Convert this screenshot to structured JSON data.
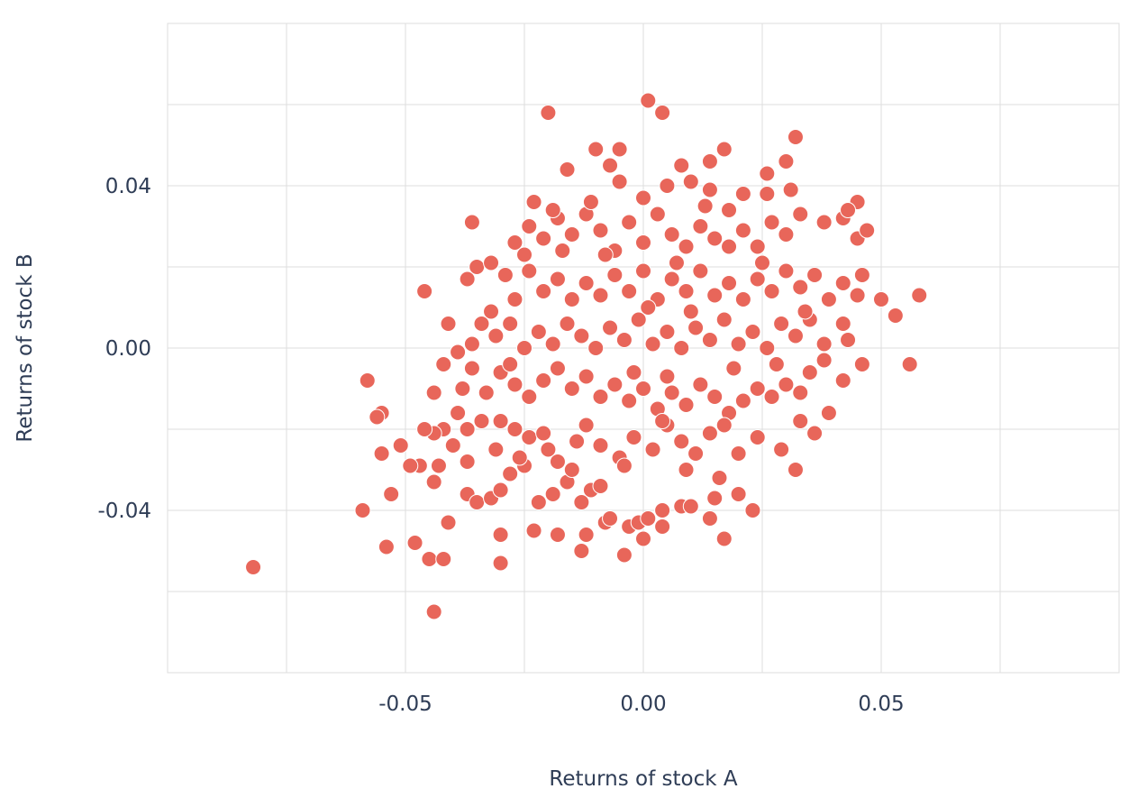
{
  "chart_data": {
    "type": "scatter",
    "xlabel": "Returns of stock A",
    "ylabel": "Returns of stock B",
    "xlim": [
      -0.1,
      0.1
    ],
    "ylim": [
      -0.08,
      0.08
    ],
    "x_ticks": [
      -0.05,
      0.0,
      0.05
    ],
    "x_tick_labels": [
      "-0.05",
      "0.00",
      "0.05"
    ],
    "y_ticks": [
      -0.04,
      0.0,
      0.04
    ],
    "y_tick_labels": [
      "-0.04",
      "0.00",
      "0.04"
    ],
    "x_gridlines": [
      -0.075,
      -0.05,
      -0.025,
      0.0,
      0.025,
      0.05,
      0.075
    ],
    "y_gridlines": [
      -0.06,
      -0.04,
      -0.02,
      0.0,
      0.02,
      0.04,
      0.06
    ],
    "grid": true,
    "colors": {
      "point": "#e8665a",
      "point_stroke": "#ffffff",
      "grid": "#dddddd",
      "text": "#2f3d56"
    },
    "points": [
      [
        -0.082,
        -0.054
      ],
      [
        -0.044,
        -0.065
      ],
      [
        -0.059,
        -0.04
      ],
      [
        -0.054,
        -0.049
      ],
      [
        -0.048,
        -0.048
      ],
      [
        -0.045,
        -0.052
      ],
      [
        -0.042,
        -0.052
      ],
      [
        -0.03,
        -0.053
      ],
      [
        -0.03,
        -0.046
      ],
      [
        -0.023,
        -0.045
      ],
      [
        -0.018,
        -0.046
      ],
      [
        -0.012,
        -0.046
      ],
      [
        -0.013,
        -0.05
      ],
      [
        -0.008,
        -0.043
      ],
      [
        -0.004,
        -0.051
      ],
      [
        -0.003,
        -0.044
      ],
      [
        0.0,
        -0.047
      ],
      [
        -0.001,
        -0.043
      ],
      [
        0.001,
        -0.042
      ],
      [
        0.004,
        -0.044
      ],
      [
        0.004,
        -0.04
      ],
      [
        0.008,
        -0.039
      ],
      [
        0.01,
        -0.039
      ],
      [
        0.014,
        -0.042
      ],
      [
        0.017,
        -0.047
      ],
      [
        0.023,
        -0.04
      ],
      [
        0.02,
        -0.036
      ],
      [
        0.015,
        -0.037
      ],
      [
        -0.051,
        -0.024
      ],
      [
        -0.053,
        -0.036
      ],
      [
        -0.041,
        -0.043
      ],
      [
        -0.044,
        -0.033
      ],
      [
        -0.047,
        -0.029
      ],
      [
        -0.04,
        -0.024
      ],
      [
        -0.037,
        -0.036
      ],
      [
        -0.035,
        -0.038
      ],
      [
        -0.032,
        -0.037
      ],
      [
        -0.03,
        -0.035
      ],
      [
        -0.028,
        -0.031
      ],
      [
        -0.025,
        -0.029
      ],
      [
        -0.022,
        -0.038
      ],
      [
        -0.019,
        -0.036
      ],
      [
        -0.016,
        -0.033
      ],
      [
        -0.013,
        -0.038
      ],
      [
        -0.011,
        -0.035
      ],
      [
        -0.009,
        -0.034
      ],
      [
        -0.015,
        -0.03
      ],
      [
        -0.018,
        -0.028
      ],
      [
        -0.02,
        -0.025
      ],
      [
        -0.024,
        -0.022
      ],
      [
        -0.027,
        -0.02
      ],
      [
        -0.03,
        -0.018
      ],
      [
        -0.034,
        -0.018
      ],
      [
        -0.037,
        -0.02
      ],
      [
        -0.039,
        -0.016
      ],
      [
        -0.042,
        -0.02
      ],
      [
        -0.044,
        -0.021
      ],
      [
        -0.055,
        -0.026
      ],
      [
        -0.055,
        -0.016
      ],
      [
        -0.056,
        -0.017
      ],
      [
        -0.058,
        -0.008
      ],
      [
        -0.044,
        -0.011
      ],
      [
        -0.042,
        -0.004
      ],
      [
        -0.038,
        -0.01
      ],
      [
        -0.036,
        -0.005
      ],
      [
        -0.033,
        -0.011
      ],
      [
        -0.03,
        -0.006
      ],
      [
        -0.027,
        -0.009
      ],
      [
        -0.024,
        -0.012
      ],
      [
        -0.021,
        -0.008
      ],
      [
        -0.018,
        -0.005
      ],
      [
        -0.015,
        -0.01
      ],
      [
        -0.012,
        -0.007
      ],
      [
        -0.009,
        -0.012
      ],
      [
        -0.006,
        -0.009
      ],
      [
        -0.003,
        -0.013
      ],
      [
        0.0,
        -0.01
      ],
      [
        0.003,
        -0.015
      ],
      [
        0.006,
        -0.011
      ],
      [
        0.009,
        -0.014
      ],
      [
        0.012,
        -0.009
      ],
      [
        0.015,
        -0.012
      ],
      [
        0.018,
        -0.016
      ],
      [
        0.021,
        -0.013
      ],
      [
        0.024,
        -0.01
      ],
      [
        0.027,
        -0.012
      ],
      [
        0.03,
        -0.009
      ],
      [
        0.033,
        -0.011
      ],
      [
        0.035,
        -0.006
      ],
      [
        0.038,
        -0.003
      ],
      [
        0.042,
        -0.008
      ],
      [
        0.046,
        -0.004
      ],
      [
        0.056,
        -0.004
      ],
      [
        -0.041,
        0.006
      ],
      [
        -0.039,
        -0.001
      ],
      [
        -0.036,
        0.001
      ],
      [
        -0.034,
        0.006
      ],
      [
        -0.031,
        0.003
      ],
      [
        -0.028,
        0.006
      ],
      [
        -0.025,
        0.0
      ],
      [
        -0.022,
        0.004
      ],
      [
        -0.019,
        0.001
      ],
      [
        -0.016,
        0.006
      ],
      [
        -0.013,
        0.003
      ],
      [
        -0.01,
        0.0
      ],
      [
        -0.007,
        0.005
      ],
      [
        -0.004,
        0.002
      ],
      [
        -0.001,
        0.007
      ],
      [
        0.002,
        0.001
      ],
      [
        0.005,
        0.004
      ],
      [
        0.008,
        0.0
      ],
      [
        0.011,
        0.005
      ],
      [
        0.014,
        0.002
      ],
      [
        0.017,
        0.007
      ],
      [
        0.02,
        0.001
      ],
      [
        0.023,
        0.004
      ],
      [
        0.026,
        0.0
      ],
      [
        0.029,
        0.006
      ],
      [
        0.032,
        0.003
      ],
      [
        0.035,
        0.007
      ],
      [
        0.038,
        0.001
      ],
      [
        0.042,
        0.006
      ],
      [
        0.043,
        0.002
      ],
      [
        0.053,
        0.008
      ],
      [
        0.058,
        0.013
      ],
      [
        0.05,
        0.012
      ],
      [
        -0.046,
        0.014
      ],
      [
        -0.037,
        0.017
      ],
      [
        -0.035,
        0.02
      ],
      [
        -0.032,
        0.021
      ],
      [
        -0.029,
        0.018
      ],
      [
        -0.027,
        0.012
      ],
      [
        -0.024,
        0.019
      ],
      [
        -0.021,
        0.014
      ],
      [
        -0.018,
        0.017
      ],
      [
        -0.015,
        0.012
      ],
      [
        -0.012,
        0.016
      ],
      [
        -0.009,
        0.013
      ],
      [
        -0.006,
        0.018
      ],
      [
        -0.003,
        0.014
      ],
      [
        0.0,
        0.019
      ],
      [
        0.003,
        0.012
      ],
      [
        0.006,
        0.017
      ],
      [
        0.009,
        0.014
      ],
      [
        0.012,
        0.019
      ],
      [
        0.015,
        0.013
      ],
      [
        0.018,
        0.016
      ],
      [
        0.021,
        0.012
      ],
      [
        0.024,
        0.017
      ],
      [
        0.027,
        0.014
      ],
      [
        0.03,
        0.019
      ],
      [
        0.033,
        0.015
      ],
      [
        0.036,
        0.018
      ],
      [
        0.039,
        0.012
      ],
      [
        0.042,
        0.016
      ],
      [
        0.045,
        0.013
      ],
      [
        0.046,
        0.018
      ],
      [
        -0.036,
        0.031
      ],
      [
        -0.027,
        0.026
      ],
      [
        -0.024,
        0.03
      ],
      [
        -0.021,
        0.027
      ],
      [
        -0.018,
        0.032
      ],
      [
        -0.015,
        0.028
      ],
      [
        -0.012,
        0.033
      ],
      [
        -0.009,
        0.029
      ],
      [
        -0.006,
        0.024
      ],
      [
        -0.003,
        0.031
      ],
      [
        0.0,
        0.026
      ],
      [
        0.003,
        0.033
      ],
      [
        0.006,
        0.028
      ],
      [
        0.009,
        0.025
      ],
      [
        0.012,
        0.03
      ],
      [
        0.015,
        0.027
      ],
      [
        0.018,
        0.034
      ],
      [
        0.021,
        0.029
      ],
      [
        0.024,
        0.025
      ],
      [
        0.027,
        0.031
      ],
      [
        0.03,
        0.028
      ],
      [
        0.033,
        0.033
      ],
      [
        0.038,
        0.031
      ],
      [
        0.042,
        0.032
      ],
      [
        0.045,
        0.027
      ],
      [
        0.047,
        0.029
      ],
      [
        -0.023,
        0.036
      ],
      [
        -0.019,
        0.034
      ],
      [
        -0.011,
        0.036
      ],
      [
        -0.005,
        0.041
      ],
      [
        0.0,
        0.037
      ],
      [
        0.005,
        0.04
      ],
      [
        0.01,
        0.041
      ],
      [
        0.014,
        0.039
      ],
      [
        0.021,
        0.038
      ],
      [
        0.026,
        0.038
      ],
      [
        0.031,
        0.039
      ],
      [
        0.045,
        0.036
      ],
      [
        0.043,
        0.034
      ],
      [
        -0.016,
        0.044
      ],
      [
        -0.01,
        0.049
      ],
      [
        -0.007,
        0.045
      ],
      [
        -0.005,
        0.049
      ],
      [
        0.008,
        0.045
      ],
      [
        0.014,
        0.046
      ],
      [
        0.017,
        0.049
      ],
      [
        0.026,
        0.043
      ],
      [
        0.03,
        0.046
      ],
      [
        0.032,
        0.052
      ],
      [
        -0.02,
        0.058
      ],
      [
        0.001,
        0.061
      ],
      [
        0.004,
        0.058
      ],
      [
        -0.046,
        -0.02
      ],
      [
        -0.049,
        -0.029
      ],
      [
        -0.043,
        -0.029
      ],
      [
        -0.037,
        -0.028
      ],
      [
        -0.031,
        -0.025
      ],
      [
        -0.026,
        -0.027
      ],
      [
        -0.021,
        -0.021
      ],
      [
        -0.014,
        -0.023
      ],
      [
        -0.009,
        -0.024
      ],
      [
        -0.005,
        -0.027
      ],
      [
        -0.002,
        -0.022
      ],
      [
        0.002,
        -0.025
      ],
      [
        0.005,
        -0.019
      ],
      [
        0.008,
        -0.023
      ],
      [
        0.011,
        -0.026
      ],
      [
        0.014,
        -0.021
      ],
      [
        0.017,
        -0.019
      ],
      [
        0.02,
        -0.026
      ],
      [
        0.024,
        -0.022
      ],
      [
        0.029,
        -0.025
      ],
      [
        0.032,
        -0.03
      ],
      [
        0.036,
        -0.021
      ],
      [
        0.039,
        -0.016
      ],
      [
        0.033,
        -0.018
      ],
      [
        -0.007,
        -0.042
      ],
      [
        0.009,
        -0.03
      ],
      [
        0.016,
        -0.032
      ],
      [
        0.004,
        -0.018
      ],
      [
        -0.002,
        -0.006
      ],
      [
        0.001,
        0.01
      ],
      [
        -0.008,
        0.023
      ],
      [
        0.007,
        0.021
      ],
      [
        0.01,
        0.009
      ],
      [
        -0.012,
        -0.019
      ],
      [
        0.019,
        -0.005
      ],
      [
        0.025,
        0.021
      ],
      [
        -0.028,
        -0.004
      ],
      [
        0.034,
        0.009
      ],
      [
        -0.017,
        0.024
      ],
      [
        0.013,
        0.035
      ],
      [
        -0.032,
        0.009
      ],
      [
        0.028,
        -0.004
      ],
      [
        -0.004,
        -0.029
      ],
      [
        0.018,
        0.025
      ],
      [
        -0.025,
        0.023
      ],
      [
        0.005,
        -0.007
      ]
    ]
  }
}
